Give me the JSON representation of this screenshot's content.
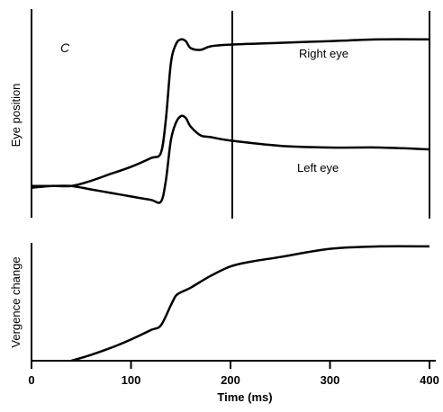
{
  "chart_data": [
    {
      "type": "line",
      "panel_label": "C",
      "ylabel": "Eye position",
      "xlim": [
        0,
        400
      ],
      "ylim": [
        0,
        1
      ],
      "markers_x": [
        200,
        400
      ],
      "series": [
        {
          "name": "Right eye",
          "x": [
            0,
            20,
            40,
            60,
            80,
            100,
            120,
            130,
            135,
            140,
            145,
            150,
            155,
            160,
            170,
            180,
            200,
            250,
            300,
            350,
            400
          ],
          "y": [
            0.11,
            0.12,
            0.12,
            0.15,
            0.19,
            0.23,
            0.28,
            0.31,
            0.5,
            0.82,
            0.93,
            0.96,
            0.95,
            0.91,
            0.9,
            0.92,
            0.93,
            0.94,
            0.95,
            0.96,
            0.96
          ]
        },
        {
          "name": "Left eye",
          "x": [
            0,
            20,
            40,
            60,
            80,
            100,
            120,
            130,
            135,
            140,
            145,
            150,
            155,
            160,
            170,
            180,
            200,
            250,
            300,
            350,
            400
          ],
          "y": [
            0.12,
            0.12,
            0.12,
            0.1,
            0.08,
            0.06,
            0.04,
            0.03,
            0.15,
            0.38,
            0.48,
            0.52,
            0.51,
            0.46,
            0.41,
            0.4,
            0.38,
            0.35,
            0.34,
            0.34,
            0.33
          ]
        }
      ]
    },
    {
      "type": "line",
      "xlabel": "Time (ms)",
      "ylabel": "Vergence change",
      "xlim": [
        0,
        400
      ],
      "xticks": [
        0,
        100,
        200,
        300,
        400
      ],
      "ylim": [
        0,
        1
      ],
      "series": [
        {
          "x": [
            40,
            60,
            80,
            100,
            120,
            130,
            140,
            145,
            150,
            160,
            180,
            200,
            220,
            250,
            300,
            350,
            400
          ],
          "y": [
            0.0,
            0.05,
            0.11,
            0.18,
            0.26,
            0.3,
            0.47,
            0.55,
            0.58,
            0.62,
            0.72,
            0.8,
            0.84,
            0.88,
            0.95,
            0.97,
            0.97
          ]
        }
      ]
    }
  ]
}
